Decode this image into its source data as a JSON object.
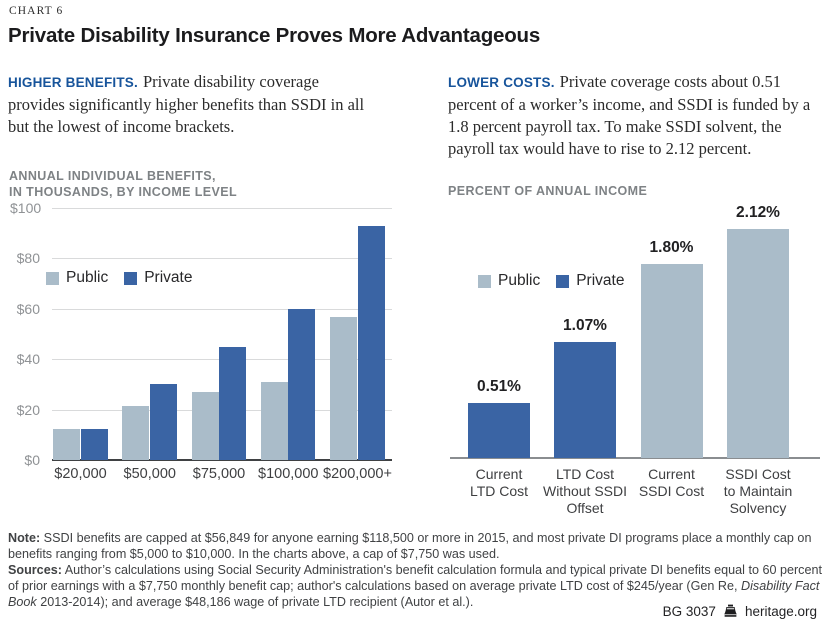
{
  "palette": {
    "public": "#AABCC9",
    "private": "#3A64A4",
    "accent_blue": "#17549B"
  },
  "header": {
    "kicker": "CHART 6",
    "title": "Private Disability Insurance Proves More Advantageous"
  },
  "intro": {
    "left": {
      "lead": "HIGHER BENEFITS.",
      "text": "Private disability coverage provides significantly higher benefits than SSDI in all but the lowest of income brackets."
    },
    "right": {
      "lead": "LOWER COSTS.",
      "text": "Private coverage costs about 0.51 percent of a worker’s income, and SSDI is funded by a 1.8 percent payroll tax. To make SSDI solvent, the payroll tax would have to rise to 2.12 percent."
    }
  },
  "chart_data": [
    {
      "type": "bar",
      "title": "ANNUAL INDIVIDUAL BENEFITS,\nIN THOUSANDS, BY INCOME LEVEL",
      "categories": [
        "$20,000",
        "$50,000",
        "$75,000",
        "$100,000",
        "$200,000+"
      ],
      "series": [
        {
          "name": "Public",
          "color_key": "public",
          "values": [
            12.3,
            21.4,
            27.1,
            30.9,
            56.8
          ]
        },
        {
          "name": "Private",
          "color_key": "private",
          "values": [
            12.2,
            30,
            45,
            60,
            93
          ]
        }
      ],
      "ylim": [
        0,
        100
      ],
      "yticks": {
        "values": [
          0,
          20,
          40,
          60,
          80,
          100
        ],
        "labels": [
          "$0",
          "$20",
          "$40",
          "$60",
          "$80",
          "$100"
        ]
      },
      "legend": [
        "Public",
        "Private"
      ],
      "legend_position": "upper-left-inside",
      "grid": true
    },
    {
      "type": "bar",
      "title": "PERCENT OF ANNUAL INCOME",
      "categories": [
        [
          "Current",
          "LTD Cost"
        ],
        [
          "LTD Cost",
          "Without SSDI",
          "Offset"
        ],
        [
          "Current",
          "SSDI Cost"
        ],
        [
          "SSDI Cost",
          "to Maintain",
          "Solvency"
        ]
      ],
      "values": [
        0.51,
        1.07,
        1.8,
        2.12
      ],
      "value_labels": [
        "0.51%",
        "1.07%",
        "1.80%",
        "2.12%"
      ],
      "bar_series": [
        "Private",
        "Private",
        "Public",
        "Public"
      ],
      "ylim": [
        0,
        2.4
      ],
      "legend": [
        "Public",
        "Private"
      ],
      "legend_position": "upper-left-inside",
      "grid": false
    }
  ],
  "notes": {
    "paragraphs": [
      [
        {
          "t": "Note:",
          "b": true
        },
        {
          "t": " SSDI benefits are capped at $56,849 for anyone earning $118,500 or more in 2015, and most private DI programs place a monthly cap on benefits ranging from $5,000 to $10,000. In the charts above, a cap of $7,750 was used."
        }
      ],
      [
        {
          "t": "Sources:",
          "b": true
        },
        {
          "t": " Author’s calculations using Social Security Administration's benefit calculation formula and typical private DI benefits equal to 60 percent of prior earnings with a $7,750 monthly benefit cap; author's calculations based on average private LTD cost of $245/year (Gen Re, "
        },
        {
          "t": "Disability Fact Book",
          "i": true
        },
        {
          "t": " 2013-2014); and average $48,186 wage of private LTD recipient (Autor et al.)."
        }
      ]
    ]
  },
  "footer": {
    "doc_id": "BG  3037",
    "site": "heritage.org"
  }
}
